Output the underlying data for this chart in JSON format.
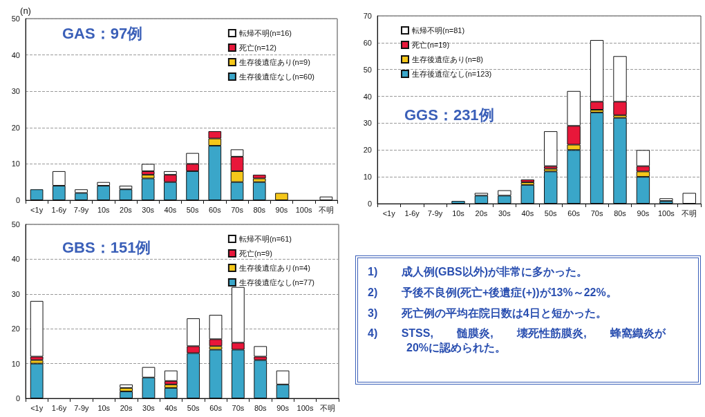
{
  "chart_data": [
    {
      "type": "bar",
      "title": "GAS：97例",
      "ylabel": "(n)",
      "stacked": true,
      "categories": [
        "<1y",
        "1-6y",
        "7-9y",
        "10s",
        "20s",
        "30s",
        "40s",
        "50s",
        "60s",
        "70s",
        "80s",
        "90s",
        "100s",
        "不明"
      ],
      "ylim": [
        0,
        50
      ],
      "yticks": [
        0,
        10,
        20,
        30,
        40,
        50
      ],
      "grid": "y",
      "legend": "top right",
      "series": [
        {
          "name": "生存後遺症なし(n=60)",
          "color": "#3aa6c9",
          "values": [
            3,
            4,
            2,
            4,
            3,
            6,
            5,
            8,
            15,
            5,
            5,
            0,
            0,
            0
          ]
        },
        {
          "name": "生存後遺症あり(n=9)",
          "color": "#f5c71a",
          "values": [
            0,
            0,
            0,
            0,
            0,
            1,
            0,
            0,
            2,
            3,
            1,
            2,
            0,
            0
          ]
        },
        {
          "name": "死亡(n=12)",
          "color": "#e8173a",
          "values": [
            0,
            0,
            0,
            0,
            0,
            1,
            2,
            2,
            2,
            4,
            1,
            0,
            0,
            0
          ]
        },
        {
          "name": "転帰不明(n=16)",
          "color": "#ffffff",
          "values": [
            0,
            4,
            1,
            1,
            1,
            2,
            1,
            3,
            0,
            2,
            0,
            0,
            0,
            1
          ]
        }
      ]
    },
    {
      "type": "bar",
      "title": "GGS：231例",
      "stacked": true,
      "categories": [
        "<1y",
        "1-6y",
        "7-9y",
        "10s",
        "20s",
        "30s",
        "40s",
        "50s",
        "60s",
        "70s",
        "80s",
        "90s",
        "100s",
        "不明"
      ],
      "ylim": [
        0,
        70
      ],
      "yticks": [
        0,
        10,
        20,
        30,
        40,
        50,
        60,
        70
      ],
      "grid": "y",
      "legend": "top left",
      "series": [
        {
          "name": "生存後遺症なし(n=123)",
          "color": "#3aa6c9",
          "values": [
            0,
            0,
            0,
            1,
            3,
            3,
            7,
            12,
            20,
            34,
            32,
            10,
            1,
            0
          ]
        },
        {
          "name": "生存後遺症あり(n=8)",
          "color": "#f5c71a",
          "values": [
            0,
            0,
            0,
            0,
            0,
            0,
            1,
            1,
            2,
            1,
            1,
            2,
            0,
            0
          ]
        },
        {
          "name": "死亡(n=19)",
          "color": "#e8173a",
          "values": [
            0,
            0,
            0,
            0,
            0,
            0,
            1,
            1,
            7,
            3,
            5,
            2,
            0,
            0
          ]
        },
        {
          "name": "転帰不明(n=81)",
          "color": "#ffffff",
          "values": [
            0,
            0,
            0,
            0,
            1,
            2,
            0,
            13,
            13,
            23,
            17,
            6,
            1,
            4
          ]
        }
      ]
    },
    {
      "type": "bar",
      "title": "GBS：151例",
      "stacked": true,
      "categories": [
        "<1y",
        "1-6y",
        "7-9y",
        "10s",
        "20s",
        "30s",
        "40s",
        "50s",
        "60s",
        "70s",
        "80s",
        "90s",
        "100s",
        "不明"
      ],
      "ylim": [
        0,
        50
      ],
      "yticks": [
        0,
        10,
        20,
        30,
        40,
        50
      ],
      "grid": "y",
      "legend": "top right",
      "series": [
        {
          "name": "生存後遺症なし(n=77)",
          "color": "#3aa6c9",
          "values": [
            10,
            0,
            0,
            0,
            2,
            6,
            3,
            13,
            14,
            14,
            11,
            4,
            0,
            0
          ]
        },
        {
          "name": "生存後遺症あり(n=4)",
          "color": "#f5c71a",
          "values": [
            1,
            0,
            0,
            0,
            1,
            0,
            1,
            0,
            1,
            0,
            0,
            0,
            0,
            0
          ]
        },
        {
          "name": "死亡(n=9)",
          "color": "#e8173a",
          "values": [
            1,
            0,
            0,
            0,
            0,
            0,
            1,
            2,
            2,
            2,
            1,
            0,
            0,
            0
          ]
        },
        {
          "name": "転帰不明(n=61)",
          "color": "#ffffff",
          "values": [
            16,
            0,
            0,
            0,
            1,
            3,
            3,
            8,
            7,
            16,
            3,
            4,
            0,
            0
          ]
        }
      ]
    },
    {
      "type": "other",
      "annotations": [
        "1) 成人例(GBS以外)が非常に多かった。",
        "2) 予後不良例(死亡+後遺症(+))が13%～22%。",
        "3) 死亡例の平均在院日数は4日と短かった。",
        "4) STSS, 髄膜炎, 壊死性筋膜炎, 蜂窩織炎が20%に認められた。"
      ]
    }
  ]
}
